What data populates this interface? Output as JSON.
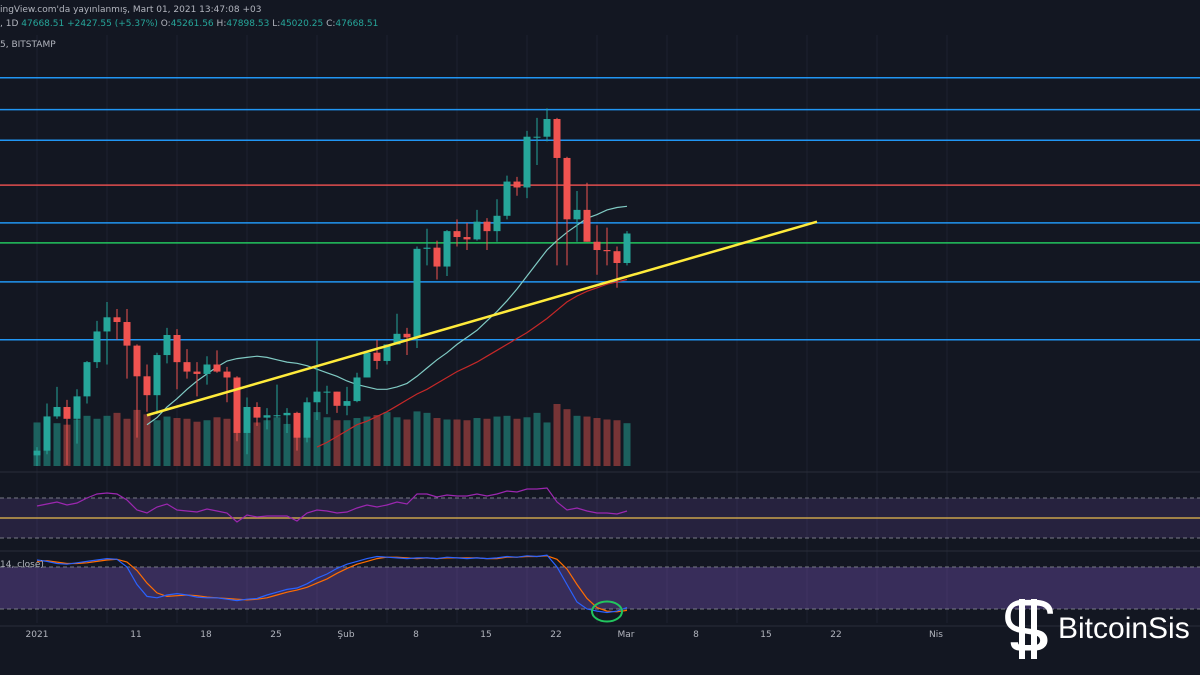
{
  "header": {
    "line1": "ingView.com'da yayınlanmış, Mart 01, 2021 13:47:08 +03",
    "symbol": ", 1D",
    "last": "47668.51",
    "change": "+2427.55 (+5.37%)",
    "o_label": "O:",
    "o": "45261.56",
    "h_label": "H:",
    "h": "47898.53",
    "l_label": "L:",
    "l": "45020.25",
    "c_label": "C:",
    "c": "47668.51",
    "line3": "5, BITSTAMP"
  },
  "stoch_label": "14, close)",
  "x_axis": {
    "labels": [
      "2021",
      "11",
      "18",
      "25",
      "Şub",
      "8",
      "15",
      "22",
      "Mar",
      "8",
      "15",
      "22",
      "Nis"
    ]
  },
  "brand": {
    "name": "BitcoinSis"
  },
  "colors": {
    "background": "#131722",
    "up": "#26a69a",
    "down": "#ef5350",
    "support": "#2196f3",
    "red_level": "#e04e4e",
    "green_level": "#22c55e",
    "trendline": "#ffeb3b",
    "rsi": "#9c27b0",
    "stoch_k": "#2962ff",
    "stoch_d": "#ff6d00"
  },
  "chart_data": {
    "type": "candlestick",
    "title": "",
    "x_dates": [
      "2021-01-01",
      "2021-01-02",
      "2021-01-03",
      "2021-01-04",
      "2021-01-05",
      "2021-01-06",
      "2021-01-07",
      "2021-01-08",
      "2021-01-09",
      "2021-01-10",
      "2021-01-11",
      "2021-01-12",
      "2021-01-13",
      "2021-01-14",
      "2021-01-15",
      "2021-01-16",
      "2021-01-17",
      "2021-01-18",
      "2021-01-19",
      "2021-01-20",
      "2021-01-21",
      "2021-01-22",
      "2021-01-23",
      "2021-01-24",
      "2021-01-25",
      "2021-01-26",
      "2021-01-27",
      "2021-01-28",
      "2021-01-29",
      "2021-01-30",
      "2021-01-31",
      "2021-02-01",
      "2021-02-02",
      "2021-02-03",
      "2021-02-04",
      "2021-02-05",
      "2021-02-06",
      "2021-02-07",
      "2021-02-08",
      "2021-02-09",
      "2021-02-10",
      "2021-02-11",
      "2021-02-12",
      "2021-02-13",
      "2021-02-14",
      "2021-02-15",
      "2021-02-16",
      "2021-02-17",
      "2021-02-18",
      "2021-02-19",
      "2021-02-20",
      "2021-02-21",
      "2021-02-22",
      "2021-02-23",
      "2021-02-24",
      "2021-02-25",
      "2021-02-26",
      "2021-02-27",
      "2021-02-28",
      "2021-03-01"
    ],
    "candles": [
      [
        28900,
        29600,
        28000,
        29300
      ],
      [
        29300,
        33300,
        29000,
        32200
      ],
      [
        32200,
        34700,
        32000,
        33000
      ],
      [
        33000,
        33600,
        28100,
        32000
      ],
      [
        32000,
        34500,
        29900,
        33900
      ],
      [
        33900,
        36900,
        33300,
        36800
      ],
      [
        36800,
        40300,
        36300,
        39400
      ],
      [
        39400,
        41900,
        36600,
        40600
      ],
      [
        40600,
        41300,
        38700,
        40200
      ],
      [
        40200,
        41300,
        35400,
        38200
      ],
      [
        38200,
        38300,
        30400,
        35600
      ],
      [
        35600,
        36600,
        32600,
        34000
      ],
      [
        34000,
        37600,
        32400,
        37400
      ],
      [
        37400,
        39700,
        36700,
        39100
      ],
      [
        39100,
        39600,
        34500,
        36800
      ],
      [
        36800,
        37900,
        35400,
        36000
      ],
      [
        36000,
        36800,
        33900,
        35800
      ],
      [
        35800,
        37300,
        34900,
        36600
      ],
      [
        36600,
        37800,
        35900,
        36000
      ],
      [
        36000,
        36400,
        33400,
        35500
      ],
      [
        35500,
        35600,
        30100,
        30800
      ],
      [
        30800,
        33800,
        29000,
        33000
      ],
      [
        33000,
        33400,
        31400,
        32100
      ],
      [
        32100,
        32900,
        31100,
        32300
      ],
      [
        32300,
        34900,
        32100,
        32300
      ],
      [
        32300,
        32900,
        30800,
        32500
      ],
      [
        32500,
        32600,
        29300,
        30400
      ],
      [
        30400,
        33800,
        30000,
        33400
      ],
      [
        33400,
        38600,
        31900,
        34300
      ],
      [
        34300,
        34800,
        32400,
        34300
      ],
      [
        34300,
        34300,
        32500,
        33100
      ],
      [
        33100,
        34700,
        32300,
        33500
      ],
      [
        33500,
        35900,
        33400,
        35500
      ],
      [
        35500,
        37700,
        35500,
        37600
      ],
      [
        37600,
        38700,
        36200,
        36900
      ],
      [
        36900,
        38300,
        36600,
        38300
      ],
      [
        38300,
        40900,
        38300,
        39200
      ],
      [
        39200,
        39700,
        37400,
        38900
      ],
      [
        38900,
        46600,
        38000,
        46400
      ],
      [
        46400,
        48100,
        45000,
        46500
      ],
      [
        46500,
        47100,
        43800,
        44900
      ],
      [
        44900,
        48000,
        44100,
        47900
      ],
      [
        47900,
        48900,
        46600,
        47400
      ],
      [
        47400,
        48600,
        46300,
        47200
      ],
      [
        47200,
        49700,
        47100,
        48700
      ],
      [
        48700,
        49000,
        46300,
        47900
      ],
      [
        47900,
        50600,
        47000,
        49200
      ],
      [
        49200,
        52600,
        48900,
        52100
      ],
      [
        52100,
        52500,
        50900,
        51600
      ],
      [
        51600,
        56400,
        50700,
        55900
      ],
      [
        55900,
        57500,
        53500,
        55900
      ],
      [
        55900,
        58300,
        55500,
        57400
      ],
      [
        57400,
        57500,
        45000,
        54100
      ],
      [
        54100,
        54200,
        45000,
        48900
      ],
      [
        48900,
        51300,
        47000,
        49700
      ],
      [
        49700,
        52000,
        47000,
        47000
      ],
      [
        47000,
        48400,
        44200,
        46300
      ],
      [
        46300,
        48200,
        45000,
        46200
      ],
      [
        46200,
        46600,
        43100,
        45200
      ],
      [
        45200,
        47900,
        45000,
        47700
      ]
    ],
    "volume": [
      59,
      60,
      58,
      56,
      63,
      68,
      64,
      68,
      72,
      64,
      76,
      70,
      62,
      67,
      65,
      64,
      60,
      62,
      66,
      64,
      68,
      65,
      59,
      62,
      66,
      57,
      61,
      67,
      73,
      66,
      62,
      62,
      65,
      67,
      69,
      73,
      66,
      63,
      74,
      72,
      65,
      63,
      63,
      62,
      65,
      64,
      67,
      68,
      64,
      66,
      72,
      59,
      84,
      77,
      68,
      67,
      65,
      63,
      62,
      58
    ],
    "horizontal_levels": [
      {
        "price": 60900,
        "color": "support"
      },
      {
        "price": 58200,
        "color": "support"
      },
      {
        "price": 55600,
        "color": "support"
      },
      {
        "price": 51800,
        "color": "red_level"
      },
      {
        "price": 48600,
        "color": "support"
      },
      {
        "price": 46900,
        "color": "green_level"
      },
      {
        "price": 43600,
        "color": "support"
      },
      {
        "price": 38700,
        "color": "support"
      }
    ],
    "trendline": {
      "from": {
        "date": "2021-01-12",
        "price": 32300
      },
      "to": {
        "date": "2021-03-20",
        "price": 48700
      }
    },
    "ma_short": [
      null,
      null,
      null,
      null,
      null,
      null,
      null,
      null,
      null,
      null,
      null,
      31500,
      32100,
      33000,
      33700,
      34500,
      35200,
      35800,
      36400,
      36900,
      37100,
      37200,
      37300,
      37200,
      37000,
      36800,
      36700,
      36500,
      36200,
      35900,
      35600,
      35200,
      34900,
      34700,
      34500,
      34500,
      34700,
      35000,
      35600,
      36300,
      37000,
      37600,
      38300,
      38900,
      39500,
      40300,
      41100,
      42000,
      43000,
      44100,
      45200,
      46300,
      47100,
      47800,
      48400,
      49000,
      49300,
      49700,
      49900,
      50000
    ],
    "ma_long": [
      null,
      null,
      null,
      null,
      null,
      null,
      null,
      null,
      null,
      null,
      null,
      null,
      null,
      null,
      null,
      null,
      null,
      null,
      null,
      null,
      null,
      null,
      null,
      null,
      null,
      null,
      null,
      null,
      29600,
      30000,
      30500,
      31000,
      31500,
      31800,
      32200,
      32600,
      33100,
      33600,
      34100,
      34500,
      35000,
      35500,
      36000,
      36400,
      36800,
      37300,
      37800,
      38300,
      38800,
      39300,
      39900,
      40500,
      41200,
      41900,
      42400,
      42800,
      43100,
      43400,
      43600,
      43800
    ],
    "rsi": [
      62,
      64,
      66,
      63,
      65,
      70,
      74,
      75,
      74,
      68,
      58,
      55,
      61,
      64,
      58,
      57,
      56,
      59,
      57,
      55,
      46,
      53,
      51,
      52,
      52,
      52,
      47,
      55,
      58,
      57,
      55,
      56,
      60,
      63,
      61,
      63,
      66,
      64,
      74,
      74,
      71,
      73,
      72,
      72,
      74,
      72,
      74,
      77,
      76,
      79,
      79,
      80,
      66,
      58,
      60,
      57,
      55,
      55,
      54,
      57
    ],
    "stoch_k": [
      90,
      88,
      85,
      84,
      86,
      88,
      90,
      92,
      91,
      80,
      55,
      38,
      36,
      40,
      42,
      40,
      37,
      36,
      36,
      34,
      32,
      34,
      35,
      40,
      44,
      48,
      50,
      56,
      64,
      70,
      78,
      84,
      88,
      92,
      95,
      94,
      93,
      92,
      93,
      93,
      92,
      94,
      93,
      92,
      93,
      92,
      93,
      95,
      94,
      96,
      95,
      97,
      80,
      55,
      30,
      20,
      17,
      15,
      17,
      22
    ],
    "stoch_d": [
      88,
      89,
      87,
      85,
      85,
      86,
      88,
      90,
      91,
      87,
      75,
      57,
      43,
      38,
      39,
      40,
      39,
      37,
      36,
      35,
      34,
      33,
      34,
      36,
      40,
      44,
      47,
      51,
      57,
      63,
      71,
      78,
      84,
      88,
      92,
      94,
      94,
      93,
      92,
      93,
      92,
      93,
      93,
      93,
      93,
      92,
      92,
      94,
      94,
      95,
      95,
      96,
      91,
      77,
      55,
      35,
      22,
      17,
      16,
      18
    ],
    "price_range": [
      28000,
      62400
    ],
    "rsi_range": [
      20,
      90
    ],
    "stoch_range": [
      0,
      100
    ],
    "rsi_bands": [
      70,
      50,
      30
    ],
    "stoch_bands": [
      80,
      20
    ],
    "grid": true,
    "legend": "none",
    "highlight": {
      "panel": "stoch",
      "date": "2021-02-27",
      "color": "green_level"
    }
  }
}
